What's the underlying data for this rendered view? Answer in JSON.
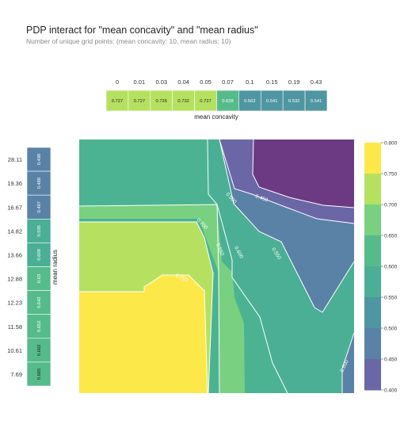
{
  "chart_data": {
    "type": "heatmap",
    "title": "PDP interact for \"mean concavity\" and \"mean radius\"",
    "subtitle": "Number of unique grid points: (mean concavity: 10, mean radius: 10)",
    "xlabel": "mean concavity",
    "ylabel": "mean radius",
    "x_ticks": [
      "0",
      "0.01",
      "0.03",
      "0.04",
      "0.05",
      "0.07",
      "0.1",
      "0.15",
      "0.19",
      "0.43"
    ],
    "y_ticks": [
      "28.11",
      "19.36",
      "16.67",
      "14.82",
      "13.66",
      "12.88",
      "12.23",
      "11.58",
      "10.61",
      "7.69"
    ],
    "top_marginal": {
      "labels": [
        "0.727",
        "0.727",
        "0.726",
        "0.732",
        "0.727",
        "0.628",
        "0.562",
        "0.541",
        "0.532",
        "0.541"
      ],
      "values": [
        0.727,
        0.727,
        0.726,
        0.732,
        0.727,
        0.628,
        0.562,
        0.541,
        0.532,
        0.541
      ]
    },
    "left_marginal": {
      "labels": [
        "0.498",
        "0.488",
        "0.497",
        "0.595",
        "0.608",
        "0.63",
        "0.642",
        "0.652",
        "0.662",
        "0.665"
      ],
      "values": [
        0.498,
        0.488,
        0.497,
        0.595,
        0.608,
        0.63,
        0.642,
        0.652,
        0.662,
        0.665
      ]
    },
    "grid": [
      [
        0.63,
        0.63,
        0.63,
        0.63,
        0.63,
        0.58,
        0.49,
        0.42,
        0.42,
        0.42
      ],
      [
        0.63,
        0.63,
        0.63,
        0.63,
        0.63,
        0.59,
        0.5,
        0.43,
        0.43,
        0.43
      ],
      [
        0.67,
        0.67,
        0.67,
        0.67,
        0.66,
        0.6,
        0.53,
        0.47,
        0.47,
        0.47
      ],
      [
        0.73,
        0.73,
        0.73,
        0.72,
        0.7,
        0.63,
        0.57,
        0.52,
        0.52,
        0.52
      ],
      [
        0.73,
        0.73,
        0.73,
        0.73,
        0.71,
        0.64,
        0.58,
        0.54,
        0.53,
        0.53
      ],
      [
        0.73,
        0.73,
        0.73,
        0.74,
        0.72,
        0.65,
        0.59,
        0.55,
        0.53,
        0.55
      ],
      [
        0.77,
        0.77,
        0.77,
        0.76,
        0.73,
        0.66,
        0.61,
        0.57,
        0.56,
        0.57
      ],
      [
        0.77,
        0.77,
        0.77,
        0.76,
        0.73,
        0.66,
        0.61,
        0.58,
        0.58,
        0.59
      ],
      [
        0.77,
        0.77,
        0.77,
        0.76,
        0.73,
        0.66,
        0.62,
        0.59,
        0.59,
        0.6
      ],
      [
        0.77,
        0.77,
        0.77,
        0.76,
        0.73,
        0.66,
        0.62,
        0.59,
        0.59,
        0.6
      ]
    ],
    "contour_levels": [
      0.45,
      0.5,
      0.55,
      0.6,
      0.65,
      0.7,
      0.75
    ],
    "contour_labels": [
      "0.450",
      "0.500",
      "0.550",
      "0.600",
      "0.650",
      "0.700",
      "0.750",
      "0.600"
    ],
    "colorbar": {
      "min": 0.4,
      "max": 0.8,
      "ticks": [
        "0.400",
        "0.450",
        "0.500",
        "0.550",
        "0.600",
        "0.650",
        "0.700",
        "0.750",
        "0.800"
      ],
      "colors": [
        "#6c3a83",
        "#6b66a6",
        "#5a82a6",
        "#4f96a2",
        "#4aaf95",
        "#56bb8b",
        "#7ad081",
        "#b6e160",
        "#fde84a"
      ]
    }
  }
}
